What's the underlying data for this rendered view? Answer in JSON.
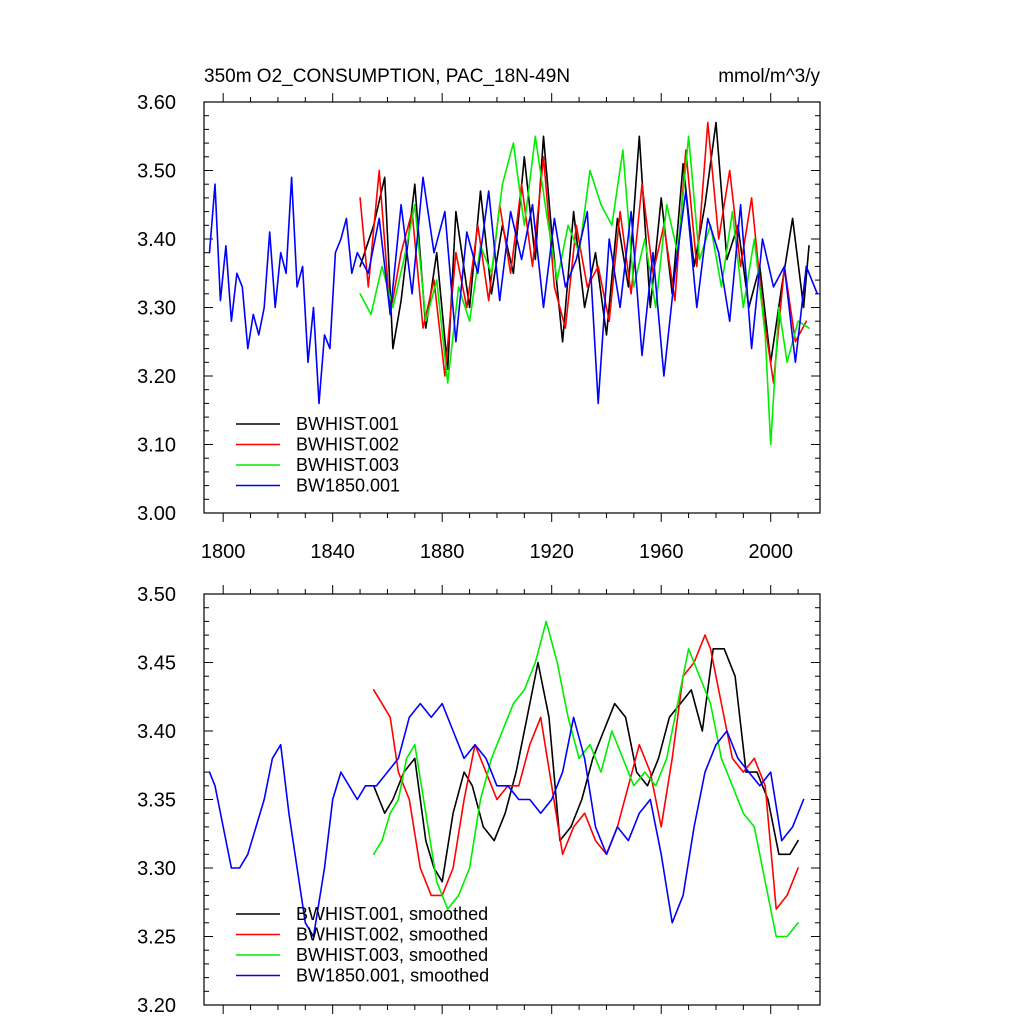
{
  "chart_data": [
    {
      "type": "line",
      "title": "350m O2_CONSUMPTION, PAC_18N-49N",
      "units": "mmol/m^3/y",
      "xlabel": "",
      "ylabel": "",
      "xlim": [
        1793,
        2018
      ],
      "ylim": [
        3.0,
        3.6
      ],
      "xticks": [
        1800,
        1840,
        1880,
        1920,
        1960,
        2000
      ],
      "xtick_labels": [
        "1800",
        "1840",
        "1880",
        "1920",
        "1960",
        "2000"
      ],
      "yticks": [
        3.0,
        3.1,
        3.2,
        3.3,
        3.4,
        3.5,
        3.6
      ],
      "ytick_labels": [
        "3.00",
        "3.10",
        "3.20",
        "3.30",
        "3.40",
        "3.50",
        "3.60"
      ],
      "legend_position": "bottom-left",
      "series": [
        {
          "name": "BWHIST.001",
          "color": "#000000",
          "x": [
            1850,
            1855,
            1859,
            1862,
            1865,
            1870,
            1874,
            1878,
            1882,
            1885,
            1890,
            1894,
            1898,
            1902,
            1906,
            1910,
            1914,
            1917,
            1920,
            1924,
            1928,
            1932,
            1936,
            1940,
            1944,
            1948,
            1952,
            1956,
            1960,
            1964,
            1968,
            1972,
            1976,
            1980,
            1984,
            1988,
            1992,
            1996,
            2000,
            2004,
            2008,
            2012,
            2014
          ],
          "values": [
            3.36,
            3.42,
            3.49,
            3.24,
            3.31,
            3.48,
            3.27,
            3.38,
            3.21,
            3.44,
            3.3,
            3.47,
            3.32,
            3.42,
            3.35,
            3.52,
            3.37,
            3.55,
            3.41,
            3.25,
            3.44,
            3.3,
            3.38,
            3.26,
            3.43,
            3.33,
            3.55,
            3.3,
            3.46,
            3.32,
            3.51,
            3.36,
            3.45,
            3.57,
            3.37,
            3.42,
            3.3,
            3.36,
            3.22,
            3.33,
            3.43,
            3.3,
            3.39
          ]
        },
        {
          "name": "BWHIST.002",
          "color": "#ff0000",
          "x": [
            1850,
            1853,
            1857,
            1861,
            1865,
            1869,
            1873,
            1877,
            1881,
            1885,
            1889,
            1893,
            1897,
            1901,
            1905,
            1909,
            1913,
            1917,
            1921,
            1925,
            1929,
            1933,
            1937,
            1941,
            1945,
            1949,
            1953,
            1957,
            1961,
            1965,
            1969,
            1973,
            1977,
            1981,
            1985,
            1989,
            1993,
            1997,
            2001,
            2005,
            2009,
            2013
          ],
          "values": [
            3.46,
            3.33,
            3.5,
            3.29,
            3.38,
            3.44,
            3.27,
            3.34,
            3.2,
            3.38,
            3.3,
            3.42,
            3.31,
            3.45,
            3.35,
            3.48,
            3.36,
            3.52,
            3.33,
            3.27,
            3.42,
            3.33,
            3.36,
            3.28,
            3.44,
            3.32,
            3.48,
            3.35,
            3.42,
            3.31,
            3.53,
            3.36,
            3.57,
            3.4,
            3.5,
            3.36,
            3.46,
            3.3,
            3.19,
            3.36,
            3.25,
            3.28
          ]
        },
        {
          "name": "BWHIST.003",
          "color": "#00ee00",
          "x": [
            1850,
            1854,
            1858,
            1862,
            1866,
            1870,
            1874,
            1878,
            1882,
            1886,
            1890,
            1894,
            1898,
            1902,
            1906,
            1910,
            1914,
            1918,
            1922,
            1926,
            1930,
            1934,
            1938,
            1942,
            1946,
            1950,
            1954,
            1958,
            1962,
            1966,
            1970,
            1974,
            1978,
            1982,
            1986,
            1990,
            1994,
            1998,
            2000,
            2003,
            2006,
            2010,
            2014
          ],
          "values": [
            3.32,
            3.29,
            3.36,
            3.3,
            3.37,
            3.45,
            3.28,
            3.34,
            3.19,
            3.33,
            3.28,
            3.39,
            3.35,
            3.48,
            3.54,
            3.42,
            3.55,
            3.44,
            3.34,
            3.42,
            3.38,
            3.5,
            3.45,
            3.42,
            3.53,
            3.33,
            3.4,
            3.3,
            3.45,
            3.38,
            3.55,
            3.37,
            3.42,
            3.33,
            3.44,
            3.3,
            3.4,
            3.26,
            3.1,
            3.3,
            3.22,
            3.28,
            3.27
          ]
        },
        {
          "name": "BW1850.001",
          "color": "#0000ff",
          "x": [
            1795,
            1797,
            1799,
            1801,
            1803,
            1805,
            1807,
            1809,
            1811,
            1813,
            1815,
            1817,
            1819,
            1821,
            1823,
            1825,
            1827,
            1829,
            1831,
            1833,
            1835,
            1837,
            1839,
            1841,
            1843,
            1845,
            1847,
            1849,
            1853,
            1857,
            1861,
            1865,
            1869,
            1873,
            1877,
            1881,
            1885,
            1889,
            1893,
            1897,
            1901,
            1905,
            1909,
            1913,
            1917,
            1921,
            1925,
            1929,
            1933,
            1937,
            1941,
            1945,
            1949,
            1953,
            1957,
            1961,
            1965,
            1969,
            1973,
            1977,
            1981,
            1985,
            1989,
            1993,
            1997,
            2001,
            2005,
            2009,
            2013,
            2017
          ],
          "values": [
            3.38,
            3.48,
            3.31,
            3.39,
            3.28,
            3.35,
            3.33,
            3.24,
            3.29,
            3.26,
            3.3,
            3.41,
            3.3,
            3.38,
            3.35,
            3.49,
            3.33,
            3.36,
            3.22,
            3.3,
            3.16,
            3.26,
            3.24,
            3.38,
            3.4,
            3.43,
            3.35,
            3.38,
            3.35,
            3.43,
            3.29,
            3.45,
            3.32,
            3.49,
            3.38,
            3.44,
            3.25,
            3.41,
            3.35,
            3.47,
            3.31,
            3.44,
            3.37,
            3.45,
            3.3,
            3.43,
            3.33,
            3.37,
            3.44,
            3.16,
            3.4,
            3.3,
            3.44,
            3.23,
            3.38,
            3.2,
            3.35,
            3.47,
            3.3,
            3.43,
            3.38,
            3.28,
            3.45,
            3.24,
            3.4,
            3.33,
            3.36,
            3.22,
            3.36,
            3.32
          ]
        }
      ]
    },
    {
      "type": "line",
      "title": "",
      "xlabel": "",
      "ylabel": "",
      "xlim": [
        1793,
        2018
      ],
      "ylim": [
        3.2,
        3.5
      ],
      "xticks": [
        1800,
        1840,
        1880,
        1920,
        1960,
        2000
      ],
      "yticks": [
        3.2,
        3.25,
        3.3,
        3.35,
        3.4,
        3.45,
        3.5
      ],
      "ytick_labels": [
        "3.20",
        "3.25",
        "3.30",
        "3.35",
        "3.40",
        "3.45",
        "3.50"
      ],
      "legend_position": "bottom-left",
      "series": [
        {
          "name": "BWHIST.001, smoothed",
          "color": "#000000",
          "x": [
            1855,
            1859,
            1862,
            1866,
            1870,
            1874,
            1877,
            1880,
            1884,
            1888,
            1891,
            1895,
            1899,
            1903,
            1907,
            1911,
            1915,
            1919,
            1923,
            1927,
            1931,
            1935,
            1939,
            1943,
            1947,
            1951,
            1955,
            1959,
            1963,
            1967,
            1971,
            1975,
            1979,
            1983,
            1987,
            1991,
            1995,
            1999,
            2003,
            2007,
            2010
          ],
          "values": [
            3.36,
            3.34,
            3.35,
            3.37,
            3.38,
            3.32,
            3.3,
            3.29,
            3.34,
            3.37,
            3.36,
            3.33,
            3.32,
            3.34,
            3.37,
            3.41,
            3.45,
            3.41,
            3.32,
            3.33,
            3.35,
            3.38,
            3.4,
            3.42,
            3.41,
            3.37,
            3.36,
            3.38,
            3.41,
            3.42,
            3.43,
            3.4,
            3.46,
            3.46,
            3.44,
            3.37,
            3.37,
            3.35,
            3.31,
            3.31,
            3.32
          ]
        },
        {
          "name": "BWHIST.002, smoothed",
          "color": "#ff0000",
          "x": [
            1855,
            1858,
            1861,
            1864,
            1868,
            1872,
            1876,
            1880,
            1884,
            1888,
            1892,
            1896,
            1900,
            1904,
            1908,
            1912,
            1916,
            1920,
            1924,
            1928,
            1932,
            1936,
            1940,
            1944,
            1948,
            1952,
            1956,
            1960,
            1964,
            1968,
            1972,
            1976,
            1978,
            1982,
            1986,
            1990,
            1994,
            1998,
            2002,
            2006,
            2010
          ],
          "values": [
            3.43,
            3.42,
            3.41,
            3.37,
            3.35,
            3.3,
            3.28,
            3.28,
            3.3,
            3.35,
            3.39,
            3.37,
            3.35,
            3.36,
            3.36,
            3.39,
            3.41,
            3.36,
            3.31,
            3.33,
            3.34,
            3.32,
            3.31,
            3.33,
            3.36,
            3.39,
            3.37,
            3.33,
            3.38,
            3.44,
            3.45,
            3.47,
            3.46,
            3.42,
            3.38,
            3.37,
            3.38,
            3.36,
            3.27,
            3.28,
            3.3
          ]
        },
        {
          "name": "BWHIST.003, smoothed",
          "color": "#00ee00",
          "x": [
            1855,
            1858,
            1861,
            1864,
            1867,
            1870,
            1874,
            1878,
            1882,
            1886,
            1890,
            1894,
            1898,
            1902,
            1906,
            1910,
            1914,
            1918,
            1922,
            1926,
            1930,
            1934,
            1938,
            1942,
            1946,
            1950,
            1954,
            1958,
            1962,
            1966,
            1970,
            1974,
            1978,
            1982,
            1986,
            1990,
            1994,
            1998,
            2002,
            2006,
            2010
          ],
          "values": [
            3.31,
            3.32,
            3.34,
            3.35,
            3.38,
            3.39,
            3.34,
            3.29,
            3.27,
            3.28,
            3.3,
            3.35,
            3.38,
            3.4,
            3.42,
            3.43,
            3.45,
            3.48,
            3.45,
            3.41,
            3.38,
            3.39,
            3.37,
            3.4,
            3.38,
            3.36,
            3.37,
            3.36,
            3.38,
            3.42,
            3.46,
            3.44,
            3.42,
            3.38,
            3.36,
            3.34,
            3.33,
            3.29,
            3.25,
            3.25,
            3.26
          ]
        },
        {
          "name": "BW1850.001, smoothed",
          "color": "#0000ff",
          "x": [
            1795,
            1797,
            1800,
            1803,
            1806,
            1809,
            1812,
            1815,
            1818,
            1821,
            1824,
            1827,
            1830,
            1833,
            1837,
            1840,
            1843,
            1846,
            1849,
            1852,
            1856,
            1860,
            1864,
            1868,
            1872,
            1876,
            1880,
            1884,
            1888,
            1892,
            1896,
            1900,
            1904,
            1908,
            1912,
            1916,
            1920,
            1924,
            1928,
            1932,
            1936,
            1940,
            1944,
            1948,
            1952,
            1956,
            1960,
            1964,
            1968,
            1972,
            1976,
            1980,
            1984,
            1988,
            1992,
            1996,
            2000,
            2004,
            2008,
            2012
          ],
          "values": [
            3.37,
            3.36,
            3.33,
            3.3,
            3.3,
            3.31,
            3.33,
            3.35,
            3.38,
            3.39,
            3.34,
            3.3,
            3.26,
            3.25,
            3.3,
            3.35,
            3.37,
            3.36,
            3.35,
            3.36,
            3.36,
            3.37,
            3.38,
            3.41,
            3.42,
            3.41,
            3.42,
            3.4,
            3.38,
            3.39,
            3.38,
            3.36,
            3.36,
            3.35,
            3.35,
            3.34,
            3.35,
            3.37,
            3.41,
            3.38,
            3.33,
            3.31,
            3.33,
            3.32,
            3.34,
            3.35,
            3.31,
            3.26,
            3.28,
            3.33,
            3.37,
            3.39,
            3.4,
            3.38,
            3.37,
            3.36,
            3.37,
            3.32,
            3.33,
            3.35
          ]
        }
      ]
    }
  ]
}
